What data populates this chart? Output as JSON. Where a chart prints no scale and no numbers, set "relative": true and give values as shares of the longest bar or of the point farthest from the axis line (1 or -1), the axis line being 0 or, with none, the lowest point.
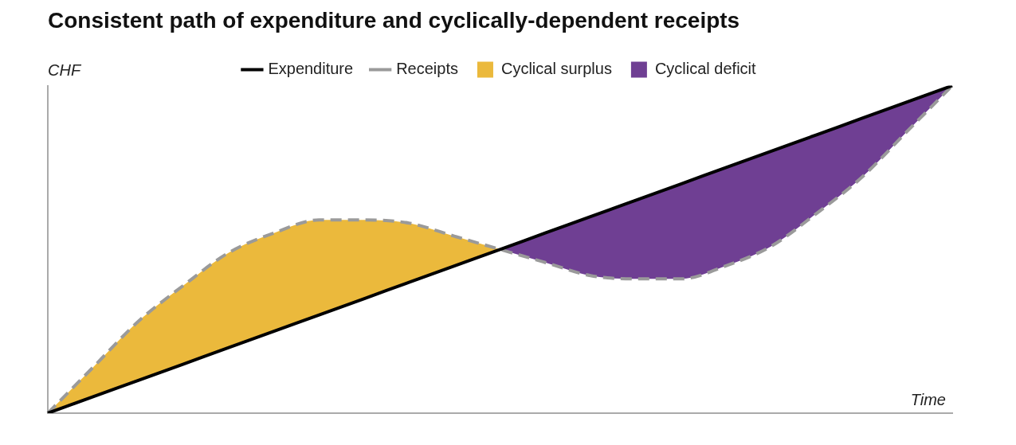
{
  "chart_data": {
    "type": "line",
    "title": "Consistent path of expenditure and cyclically-dependent receipts",
    "xlabel": "Time",
    "ylabel": "CHF",
    "relative": true,
    "legend": "top",
    "grid": false,
    "marker": "none",
    "categories": [
      null,
      null,
      null,
      null,
      null,
      null,
      null,
      null,
      null,
      null,
      null,
      null,
      null,
      null,
      null,
      null,
      null,
      null,
      null,
      null,
      null
    ],
    "series": [
      {
        "name": "Expenditure",
        "color": "#000000",
        "line_style": "solid",
        "values": [
          0,
          0.05,
          0.1,
          0.15,
          0.2,
          0.25,
          0.3,
          0.35,
          0.4,
          0.45,
          0.5,
          0.55,
          0.6,
          0.65,
          0.7,
          0.75,
          0.8,
          0.85,
          0.9,
          0.95,
          1
        ]
      },
      {
        "name": "Receipts",
        "color": "#9a9a9a",
        "line_style": "dashed",
        "values": [
          0,
          0.14,
          0.28,
          0.39,
          0.49,
          0.55,
          0.59,
          0.59,
          0.58,
          0.54,
          0.5,
          0.46,
          0.42,
          0.41,
          0.41,
          0.45,
          0.51,
          0.61,
          0.72,
          0.86,
          1
        ]
      },
      {
        "name": "Cyclical surplus",
        "type": "area",
        "color": "#ebb93c",
        "values": [
          0,
          0.14,
          0.28,
          0.39,
          0.49,
          0.55,
          0.59,
          0.59,
          0.58,
          0.54,
          0.5,
          null,
          null,
          null,
          null,
          null,
          null,
          null,
          null,
          null,
          null
        ]
      },
      {
        "name": "Cyclical deficit",
        "type": "area",
        "color": "#6f3f93",
        "values": [
          null,
          null,
          null,
          null,
          null,
          null,
          null,
          null,
          null,
          null,
          0.5,
          0.55,
          0.6,
          0.65,
          0.7,
          0.75,
          0.8,
          0.85,
          0.9,
          0.95,
          1
        ]
      }
    ]
  }
}
